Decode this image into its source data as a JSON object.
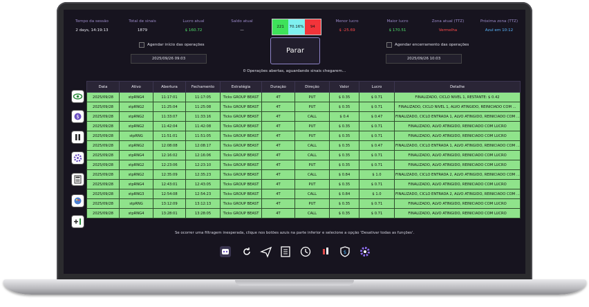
{
  "header": {
    "stats": [
      {
        "label": "Tempo da sessão",
        "value": "2 days, 14:19:13"
      },
      {
        "label": "Total de sinais",
        "value": "1879"
      },
      {
        "label": "Lucro atual",
        "value": "$ 160.72"
      },
      {
        "label": "Saldo atual",
        "value": "—"
      },
      {
        "label": "Menor lucro",
        "value": "$ -25.69"
      },
      {
        "label": "Maior lucro",
        "value": "$ 170.51"
      },
      {
        "label": "Zona atual (TTZ)",
        "value": "Vermelha"
      },
      {
        "label": "Próxima zona (TTZ)",
        "value": "Azul em 10:12"
      }
    ],
    "winloss": {
      "wins": "221",
      "rate": "70.16%",
      "losses": "94"
    }
  },
  "schedule_start": {
    "label": "Agendar início das operações",
    "datetime": "2025/09/26 09:03"
  },
  "stop_button": "Parar",
  "schedule_end": {
    "label": "Agendar encerramento das operações",
    "datetime": "2025/09/26 10:03"
  },
  "status": "0 Operações abertas, aguardando sinais chegarem...",
  "table": {
    "columns": [
      "Data",
      "Ativo",
      "Abertura",
      "Fechamento",
      "Estratégia",
      "Duração",
      "Direção",
      "Valor",
      "Lucro",
      "Detalhe"
    ],
    "rows": [
      [
        "2025/09/28",
        "stpRNG4",
        "11:17:01",
        "11:17:05",
        "Ticks GROUP BEAST",
        "4T",
        "PUT",
        "$ 0.35",
        "$ 0.71",
        "FINALIZADO, CICLO NIVEL 1, RESTANTE: $ 0.42"
      ],
      [
        "2025/09/28",
        "stpRNG2",
        "11:25:04",
        "11:25:08",
        "Ticks GROUP BEAST",
        "4T",
        "PUT",
        "$ 0.35",
        "$ 0.71",
        "FINALIZADO, CICLO NIVEL 1, ALVO ATINGIDO, REINICIADO COM ..."
      ],
      [
        "2025/09/28",
        "stpRNG2",
        "11:33:07",
        "11:33:16",
        "Ticks GROUP BEAST",
        "4T",
        "CALL",
        "$ 0.4",
        "$ 0.47",
        "FINALIZADO, CICLO ENTRADA 1, ALVO ATINGIDO, REINICIADO COM ..."
      ],
      [
        "2025/09/28",
        "stpRNG2",
        "11:42:04",
        "11:42:08",
        "Ticks GROUP BEAST",
        "4T",
        "PUT",
        "$ 0.35",
        "$ 0.71",
        "FINALIZADO, ALVO ATINGIDO, REINICIADO COM LUCRO"
      ],
      [
        "2025/09/28",
        "stpRNG",
        "11:51:01",
        "11:51:05",
        "Ticks GROUP BEAST",
        "4T",
        "PUT",
        "$ 0.35",
        "$ 0.71",
        "FINALIZADO, ALVO ATINGIDO, REINICIADO COM LUCRO"
      ],
      [
        "2025/09/28",
        "stpRNG2",
        "12:08:08",
        "12:08:17",
        "Ticks GROUP BEAST",
        "4T",
        "CALL",
        "$ 0.35",
        "$ 0.47",
        "FINALIZADO, CICLO ENTRADA 1, ALVO ATINGIDO, REINICIADO COM ..."
      ],
      [
        "2025/09/28",
        "stpRNG4",
        "12:16:02",
        "12:16:06",
        "Ticks GROUP BEAST",
        "4T",
        "CALL",
        "$ 0.35",
        "$ 0.71",
        "FINALIZADO, ALVO ATINGIDO, REINICIADO COM LUCRO"
      ],
      [
        "2025/09/28",
        "stpRNG2",
        "12:23:06",
        "12:23:10",
        "Ticks GROUP BEAST",
        "4T",
        "PUT",
        "$ 0.35",
        "$ 0.71",
        "FINALIZADO, ALVO ATINGIDO, REINICIADO COM LUCRO"
      ],
      [
        "2025/09/28",
        "stpRNG2",
        "12:35:09",
        "12:35:23",
        "Ticks GROUP BEAST",
        "4T",
        "CALL",
        "$ 0.84",
        "$ 1.0",
        "FINALIZADO, CICLO ENTRADA 2, ALVO ATINGIDO, REINICIADO COM ..."
      ],
      [
        "2025/09/28",
        "stpRNG4",
        "12:43:01",
        "12:43:05",
        "Ticks GROUP BEAST",
        "4T",
        "PUT",
        "$ 0.35",
        "$ 0.71",
        "FINALIZADO, ALVO ATINGIDO, REINICIADO COM LUCRO"
      ],
      [
        "2025/09/28",
        "stpRNG3",
        "12:54:08",
        "12:54:23",
        "Ticks GROUP BEAST",
        "4T",
        "CALL",
        "$ 0.84",
        "$ 1.0",
        "FINALIZADO, CICLO ENTRADA 2, ALVO ATINGIDO, REINICIADO COM ..."
      ],
      [
        "2025/09/28",
        "stpRNG",
        "13:12:09",
        "13:12:13",
        "Ticks GROUP BEAST",
        "4T",
        "PUT",
        "$ 0.35",
        "$ 0.71",
        "FINALIZADO, ALVO ATINGIDO, REINICIADO COM LUCRO"
      ],
      [
        "2025/09/28",
        "stpRNG4",
        "13:28:01",
        "13:28:05",
        "Ticks GROUP BEAST",
        "4T",
        "CALL",
        "$ 0.35",
        "$ 0.71",
        "FINALIZADO, ALVO ATINGIDO, REINICIADO COM LUCRO"
      ]
    ]
  },
  "footer_note": "Se ocorrer uma filtragem inesperada, clique nos botões azuis na parte inferior e selecione a opção 'Desativar todas as funções'."
}
